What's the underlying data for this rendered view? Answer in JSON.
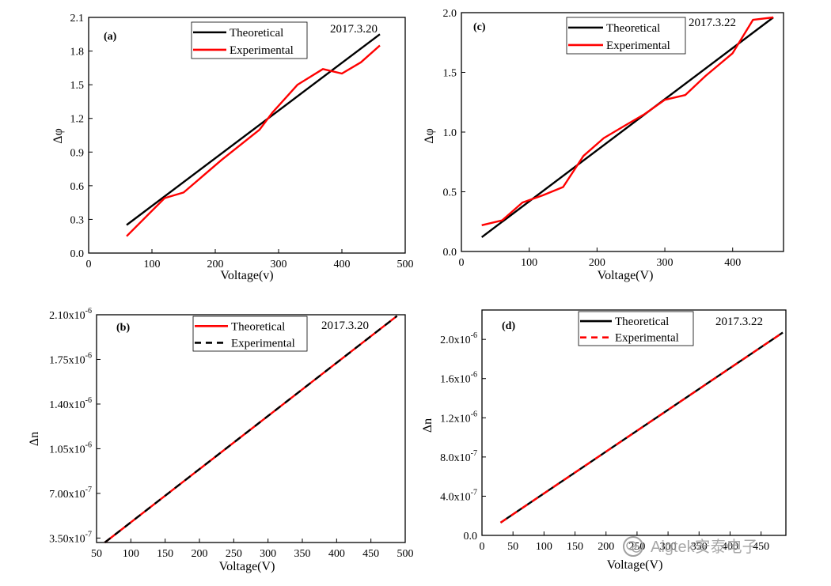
{
  "colors": {
    "theoretical": "#000000",
    "experimental": "#ff0000",
    "axes": "#000000"
  },
  "watermark": {
    "text": "Aigtek安泰电子",
    "icon": "wechat-icon"
  },
  "chart_data": [
    {
      "panel": "(a)",
      "type": "line",
      "date_label": "2017.3.20",
      "xlabel": "Voltage(v)",
      "ylabel": "Δφ",
      "xlim": [
        0,
        500
      ],
      "ylim": [
        0,
        2.1
      ],
      "xticks": [
        0,
        100,
        200,
        300,
        400,
        500
      ],
      "yticks": [
        0.0,
        0.3,
        0.6,
        0.9,
        1.2,
        1.5,
        1.8,
        2.1
      ],
      "xtick_labels": [
        "0",
        "100",
        "200",
        "300",
        "400",
        "500"
      ],
      "ytick_labels": [
        "0.0",
        "0.3",
        "0.6",
        "0.9",
        "1.2",
        "1.5",
        "1.8",
        "2.1"
      ],
      "legend_position": "top",
      "series": [
        {
          "name": "Theoretical",
          "color": "#000000",
          "dash": false,
          "x": [
            60,
            460
          ],
          "y": [
            0.25,
            1.95
          ]
        },
        {
          "name": "Experimental",
          "color": "#ff0000",
          "dash": false,
          "x": [
            60,
            120,
            150,
            210,
            270,
            290,
            330,
            370,
            400,
            430,
            460
          ],
          "y": [
            0.15,
            0.49,
            0.54,
            0.83,
            1.1,
            1.25,
            1.5,
            1.64,
            1.6,
            1.7,
            1.85
          ]
        }
      ]
    },
    {
      "panel": "(b)",
      "type": "line",
      "date_label": "2017.3.20",
      "xlabel": "Voltage(V)",
      "ylabel": "Δn",
      "xlim": [
        50,
        500
      ],
      "ylim": [
        3.15e-07,
        2.1e-06
      ],
      "xticks": [
        50,
        100,
        150,
        200,
        250,
        300,
        350,
        400,
        450,
        500
      ],
      "yticks": [
        3.5e-07,
        7e-07,
        1.05e-06,
        1.4e-06,
        1.75e-06,
        2.1e-06
      ],
      "xtick_labels": [
        "50",
        "100",
        "150",
        "200",
        "250",
        "300",
        "350",
        "400",
        "450",
        "500"
      ],
      "ytick_labels": [
        {
          "mantissa": "3.50x10",
          "exp": "-7"
        },
        {
          "mantissa": "7.00x10",
          "exp": "-7"
        },
        {
          "mantissa": "1.05x10",
          "exp": "-6"
        },
        {
          "mantissa": "1.40x10",
          "exp": "-6"
        },
        {
          "mantissa": "1.75x10",
          "exp": "-6"
        },
        {
          "mantissa": "2.10x10",
          "exp": "-6"
        }
      ],
      "legend_position": "top",
      "series": [
        {
          "name": "Theoretical",
          "color": "#ff0000",
          "dash": false,
          "x": [
            62,
            488
          ],
          "y": [
            3.15e-07,
            2.09e-06
          ]
        },
        {
          "name": "Experimental",
          "color": "#000000",
          "dash": true,
          "x": [
            62,
            488
          ],
          "y": [
            3.15e-07,
            2.09e-06
          ]
        }
      ]
    },
    {
      "panel": "(c)",
      "type": "line",
      "date_label": "2017.3.22",
      "xlabel": "Voltage(V)",
      "ylabel": "Δφ",
      "xlim": [
        0,
        475
      ],
      "ylim": [
        0,
        2.0
      ],
      "xticks": [
        0,
        100,
        200,
        300,
        400
      ],
      "yticks": [
        0.0,
        0.5,
        1.0,
        1.5,
        2.0
      ],
      "xtick_labels": [
        "0",
        "100",
        "200",
        "300",
        "400"
      ],
      "ytick_labels": [
        "0.0",
        "0.5",
        "1.0",
        "1.5",
        "2.0"
      ],
      "legend_position": "top",
      "series": [
        {
          "name": "Theoretical",
          "color": "#000000",
          "dash": false,
          "x": [
            30,
            460
          ],
          "y": [
            0.12,
            1.96
          ]
        },
        {
          "name": "Experimental",
          "color": "#ff0000",
          "dash": false,
          "x": [
            30,
            60,
            90,
            120,
            150,
            180,
            210,
            240,
            270,
            300,
            330,
            360,
            400,
            430,
            460
          ],
          "y": [
            0.22,
            0.26,
            0.41,
            0.47,
            0.54,
            0.8,
            0.95,
            1.05,
            1.15,
            1.27,
            1.31,
            1.47,
            1.66,
            1.94,
            1.96
          ]
        }
      ]
    },
    {
      "panel": "(d)",
      "type": "line",
      "date_label": "2017.3.22",
      "xlabel": "Voltage(V)",
      "ylabel": "Δn",
      "xlim": [
        0,
        490
      ],
      "ylim": [
        0,
        2.3e-06
      ],
      "xticks": [
        0,
        50,
        100,
        150,
        200,
        250,
        300,
        350,
        400,
        450
      ],
      "yticks": [
        0,
        4e-07,
        8e-07,
        1.2e-06,
        1.6e-06,
        2e-06
      ],
      "xtick_labels": [
        "0",
        "50",
        "100",
        "150",
        "200",
        "250",
        "300",
        "350",
        "400",
        "450"
      ],
      "ytick_labels": [
        {
          "mantissa": "0.0",
          "exp": ""
        },
        {
          "mantissa": "4.0x10",
          "exp": "-7"
        },
        {
          "mantissa": "8.0x10",
          "exp": "-7"
        },
        {
          "mantissa": "1.2x10",
          "exp": "-6"
        },
        {
          "mantissa": "1.6x10",
          "exp": "-6"
        },
        {
          "mantissa": "2.0x10",
          "exp": "-6"
        }
      ],
      "legend_position": "top",
      "series": [
        {
          "name": "Theoretical",
          "color": "#000000",
          "dash": false,
          "x": [
            30,
            485
          ],
          "y": [
            1.3e-07,
            2.07e-06
          ]
        },
        {
          "name": "Experimental",
          "color": "#ff0000",
          "dash": true,
          "x": [
            30,
            485
          ],
          "y": [
            1.3e-07,
            2.07e-06
          ]
        }
      ]
    }
  ]
}
